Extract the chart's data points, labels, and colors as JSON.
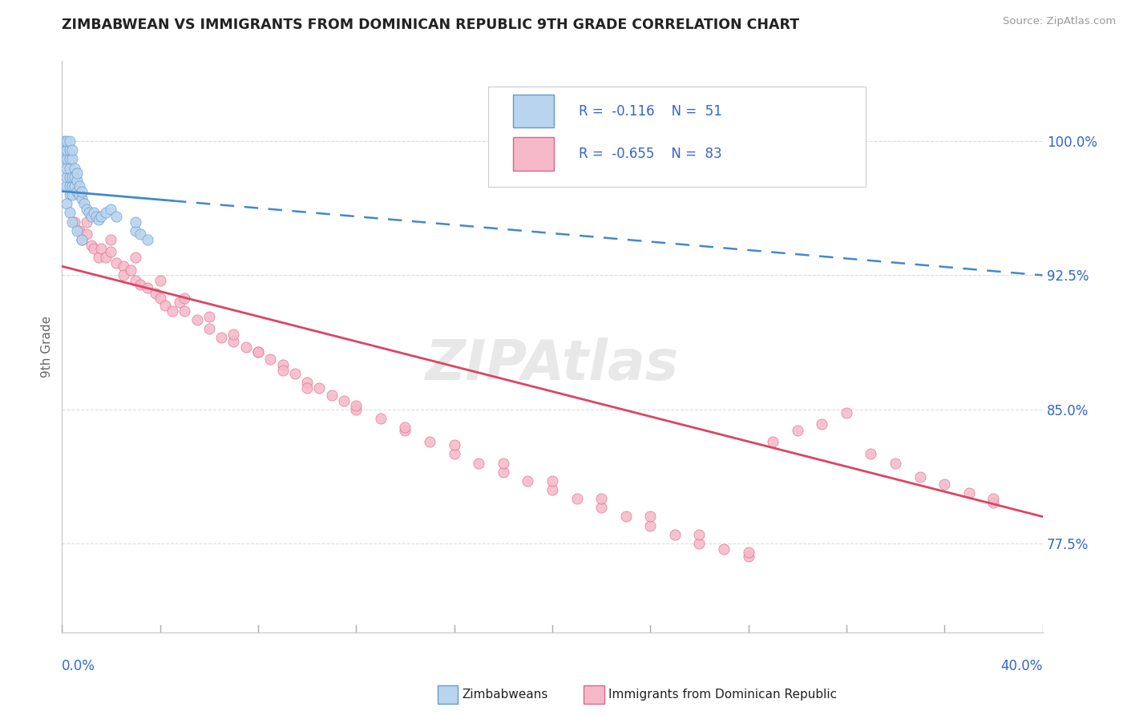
{
  "title": "ZIMBABWEAN VS IMMIGRANTS FROM DOMINICAN REPUBLIC 9TH GRADE CORRELATION CHART",
  "source": "Source: ZipAtlas.com",
  "ylabel": "9th Grade",
  "yaxis_labels": [
    "77.5%",
    "85.0%",
    "92.5%",
    "100.0%"
  ],
  "yaxis_values": [
    0.775,
    0.85,
    0.925,
    1.0
  ],
  "xmin": 0.0,
  "xmax": 0.4,
  "ymin": 0.725,
  "ymax": 1.045,
  "r_blue": -0.116,
  "n_blue": 51,
  "r_pink": -0.655,
  "n_pink": 83,
  "legend_label_blue": "Zimbabweans",
  "legend_label_pink": "Immigrants from Dominican Republic",
  "blue_dot_color": "#b8d4ee",
  "blue_edge_color": "#6699cc",
  "pink_dot_color": "#f5b8c8",
  "pink_edge_color": "#dd6688",
  "blue_line_color": "#4488cc",
  "pink_line_color": "#dd4466",
  "grid_color": "#dddddd",
  "text_color": "#3366cc",
  "title_color": "#222222",
  "blue_x": [
    0.001,
    0.001,
    0.001,
    0.002,
    0.002,
    0.002,
    0.002,
    0.002,
    0.002,
    0.003,
    0.003,
    0.003,
    0.003,
    0.003,
    0.003,
    0.003,
    0.004,
    0.004,
    0.004,
    0.004,
    0.004,
    0.005,
    0.005,
    0.005,
    0.006,
    0.006,
    0.006,
    0.007,
    0.007,
    0.008,
    0.008,
    0.009,
    0.01,
    0.011,
    0.012,
    0.013,
    0.014,
    0.015,
    0.016,
    0.018,
    0.02,
    0.022,
    0.002,
    0.003,
    0.004,
    0.006,
    0.008,
    0.03,
    0.03,
    0.032,
    0.035
  ],
  "blue_y": [
    0.99,
    0.995,
    1.0,
    0.975,
    0.98,
    0.985,
    0.99,
    0.995,
    1.0,
    0.97,
    0.975,
    0.98,
    0.985,
    0.99,
    0.995,
    1.0,
    0.97,
    0.975,
    0.98,
    0.99,
    0.995,
    0.975,
    0.98,
    0.985,
    0.972,
    0.978,
    0.982,
    0.97,
    0.975,
    0.968,
    0.972,
    0.965,
    0.962,
    0.96,
    0.958,
    0.96,
    0.958,
    0.956,
    0.958,
    0.96,
    0.962,
    0.958,
    0.965,
    0.96,
    0.955,
    0.95,
    0.945,
    0.95,
    0.955,
    0.948,
    0.945
  ],
  "pink_x": [
    0.005,
    0.007,
    0.008,
    0.01,
    0.012,
    0.013,
    0.015,
    0.016,
    0.018,
    0.02,
    0.022,
    0.025,
    0.025,
    0.028,
    0.03,
    0.032,
    0.035,
    0.038,
    0.04,
    0.042,
    0.045,
    0.048,
    0.05,
    0.055,
    0.06,
    0.065,
    0.07,
    0.075,
    0.08,
    0.085,
    0.09,
    0.095,
    0.1,
    0.105,
    0.11,
    0.115,
    0.12,
    0.13,
    0.14,
    0.15,
    0.16,
    0.17,
    0.18,
    0.19,
    0.2,
    0.21,
    0.22,
    0.23,
    0.24,
    0.25,
    0.26,
    0.27,
    0.28,
    0.29,
    0.3,
    0.31,
    0.32,
    0.33,
    0.34,
    0.35,
    0.36,
    0.37,
    0.38,
    0.01,
    0.02,
    0.03,
    0.04,
    0.05,
    0.06,
    0.07,
    0.08,
    0.09,
    0.1,
    0.12,
    0.14,
    0.16,
    0.18,
    0.2,
    0.22,
    0.24,
    0.26,
    0.28,
    0.38
  ],
  "pink_y": [
    0.955,
    0.95,
    0.945,
    0.948,
    0.942,
    0.94,
    0.935,
    0.94,
    0.935,
    0.938,
    0.932,
    0.93,
    0.925,
    0.928,
    0.922,
    0.92,
    0.918,
    0.915,
    0.912,
    0.908,
    0.905,
    0.91,
    0.905,
    0.9,
    0.895,
    0.89,
    0.888,
    0.885,
    0.882,
    0.878,
    0.875,
    0.87,
    0.865,
    0.862,
    0.858,
    0.855,
    0.85,
    0.845,
    0.838,
    0.832,
    0.825,
    0.82,
    0.815,
    0.81,
    0.805,
    0.8,
    0.795,
    0.79,
    0.785,
    0.78,
    0.775,
    0.772,
    0.768,
    0.832,
    0.838,
    0.842,
    0.848,
    0.825,
    0.82,
    0.812,
    0.808,
    0.803,
    0.798,
    0.955,
    0.945,
    0.935,
    0.922,
    0.912,
    0.902,
    0.892,
    0.882,
    0.872,
    0.862,
    0.852,
    0.84,
    0.83,
    0.82,
    0.81,
    0.8,
    0.79,
    0.78,
    0.77,
    0.8
  ],
  "blue_line_x0": 0.0,
  "blue_line_x1": 0.4,
  "blue_line_y0": 0.972,
  "blue_line_y1": 0.925,
  "pink_line_x0": 0.0,
  "pink_line_x1": 0.4,
  "pink_line_y0": 0.93,
  "pink_line_y1": 0.79
}
